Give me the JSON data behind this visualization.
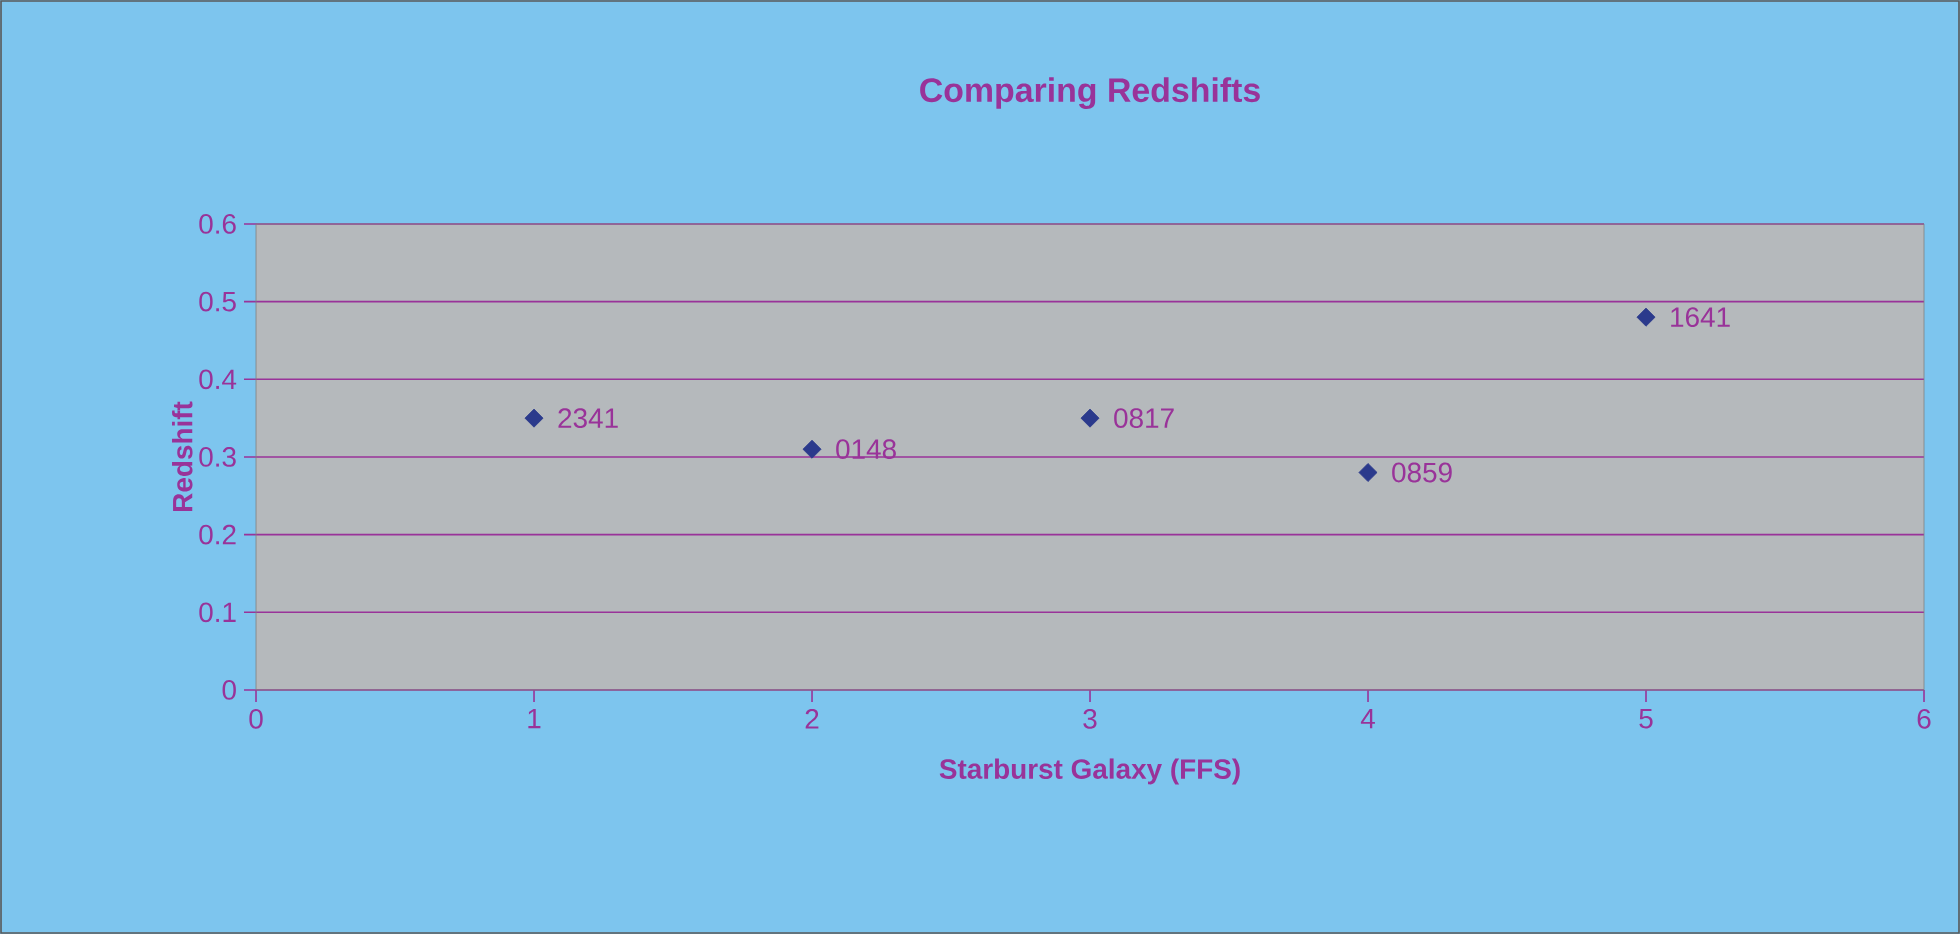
{
  "chart_data": {
    "type": "scatter",
    "title": "Comparing Redshifts",
    "xlabel": "Starburst Galaxy (FFS)",
    "ylabel": "Redshift",
    "x": [
      1,
      2,
      3,
      4,
      5
    ],
    "series": [
      {
        "color": "#2b3a8c",
        "values": [
          0.35,
          0.31,
          0.35,
          0.28,
          0.48
        ]
      }
    ],
    "annotations": [
      {
        "text": "2341",
        "x": 1,
        "y": 0.35
      },
      {
        "text": "0148",
        "x": 2,
        "y": 0.31
      },
      {
        "text": "0817",
        "x": 3,
        "y": 0.35
      },
      {
        "text": "0859",
        "x": 4,
        "y": 0.28
      },
      {
        "text": "1641",
        "x": 5,
        "y": 0.48
      }
    ],
    "xlim": [
      0,
      6
    ],
    "xticks": [
      0,
      1,
      2,
      3,
      4,
      5,
      6
    ],
    "ylim": [
      0,
      0.6
    ],
    "yticks": [
      0,
      0.1,
      0.2,
      0.3,
      0.4,
      0.5,
      0.6
    ],
    "grid": "y",
    "marker": "diamond"
  }
}
